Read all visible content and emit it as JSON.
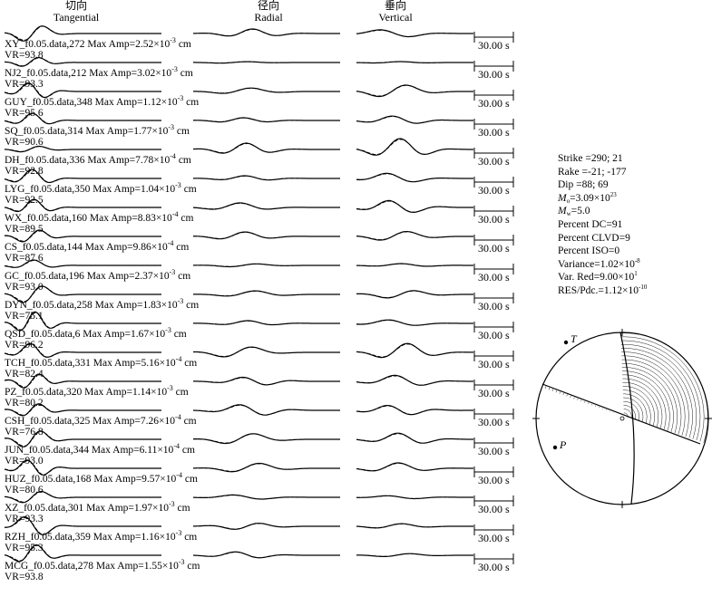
{
  "chart_data": {
    "type": "seismic-waveform-fit",
    "columns": [
      {
        "cn": "切向",
        "en": "Tangential"
      },
      {
        "cn": "径向",
        "en": "Radial"
      },
      {
        "cn": "垂向",
        "en": "Vertical"
      }
    ],
    "time_scale_label": "30.00 s",
    "amp_prefix": "Max Amp=",
    "amp_unit": "cm",
    "vr_prefix": "VR=",
    "stations": [
      {
        "name": "XY_f0.05.data,272",
        "amp_mant": "2.52",
        "amp_exp": "-3",
        "vr": "93.8"
      },
      {
        "name": "NJ2_f0.05.data,212",
        "amp_mant": "3.02",
        "amp_exp": "-3",
        "vr": "93.3"
      },
      {
        "name": "GUY_f0.05.data,348",
        "amp_mant": "1.12",
        "amp_exp": "-3",
        "vr": "95.6"
      },
      {
        "name": "SQ_f0.05.data,314",
        "amp_mant": "1.77",
        "amp_exp": "-3",
        "vr": "90.6"
      },
      {
        "name": "DH_f0.05.data,336",
        "amp_mant": "7.78",
        "amp_exp": "-4",
        "vr": "92.8"
      },
      {
        "name": "LYG_f0.05.data,350",
        "amp_mant": "1.04",
        "amp_exp": "-3",
        "vr": "92.5"
      },
      {
        "name": "WX_f0.05.data,160",
        "amp_mant": "8.83",
        "amp_exp": "-4",
        "vr": "89.5"
      },
      {
        "name": "CS_f0.05.data,144",
        "amp_mant": "9.86",
        "amp_exp": "-4",
        "vr": "87.6"
      },
      {
        "name": "GC_f0.05.data,196",
        "amp_mant": "2.37",
        "amp_exp": "-3",
        "vr": "93.0"
      },
      {
        "name": "DYN_f0.05.data,258",
        "amp_mant": "1.83",
        "amp_exp": "-3",
        "vr": "75.1"
      },
      {
        "name": "QSD_f0.05.data,6",
        "amp_mant": "1.67",
        "amp_exp": "-3",
        "vr": "96.2"
      },
      {
        "name": "TCH_f0.05.data,331",
        "amp_mant": "5.16",
        "amp_exp": "-4",
        "vr": "82.4"
      },
      {
        "name": "PZ_f0.05.data,320",
        "amp_mant": "1.14",
        "amp_exp": "-3",
        "vr": "80.2"
      },
      {
        "name": "CSH_f0.05.data,325",
        "amp_mant": "7.26",
        "amp_exp": "-4",
        "vr": "76.8"
      },
      {
        "name": "JUN_f0.05.data,344",
        "amp_mant": "6.11",
        "amp_exp": "-4",
        "vr": "93.0"
      },
      {
        "name": "HUZ_f0.05.data,168",
        "amp_mant": "9.57",
        "amp_exp": "-4",
        "vr": "80.6"
      },
      {
        "name": "XZ_f0.05.data,301",
        "amp_mant": "1.97",
        "amp_exp": "-3",
        "vr": "93.3"
      },
      {
        "name": "RZH_f0.05.data,359",
        "amp_mant": "1.16",
        "amp_exp": "-3",
        "vr": "95.3"
      },
      {
        "name": "MCG_f0.05.data,278",
        "amp_mant": "1.55",
        "amp_exp": "-3",
        "vr": "93.8"
      }
    ],
    "params": {
      "strike": "Strike =290; 21",
      "rake": "Rake =-21; -177",
      "dip": "Dip =88; 69",
      "mo_label": "M",
      "mo_sub": "o",
      "mo_mant": "=3.09×10",
      "mo_exp": "23",
      "mw_label": "M",
      "mw_sub": "w",
      "mw_val": "=5.0",
      "dc": "Percent DC=91",
      "clvd": "Percent CLVD=9",
      "iso": "Percent ISO=0",
      "var_mant": "Variance=1.02×10",
      "var_exp": "-8",
      "vred_mant": "Var. Red=9.00×10",
      "vred_exp": "1",
      "res_mant": "RES/Pdc.=1.12×10",
      "res_exp": "-10"
    },
    "focal_mechanism": {
      "t_label": "T",
      "p_label": "P",
      "strike1": 290,
      "dip1": 88,
      "rake1": -21,
      "strike2": 21,
      "dip2": 69,
      "rake2": -177
    }
  }
}
